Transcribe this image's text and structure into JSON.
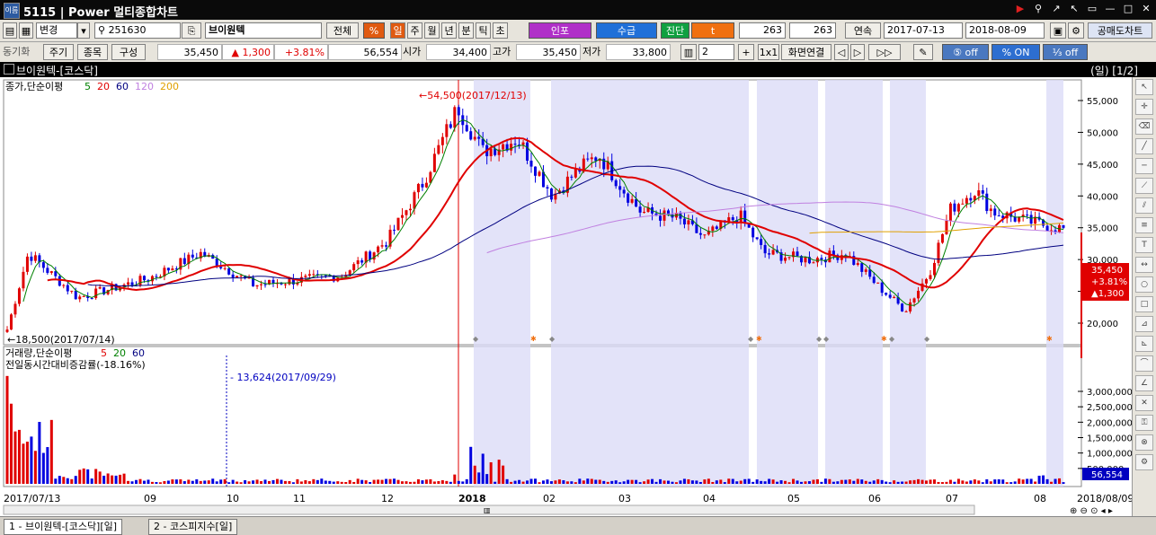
{
  "window": {
    "screen_no": "5115",
    "title": "Power 멀티종합차트"
  },
  "toolbar1": {
    "mode_select": "변경",
    "code": "251630",
    "stock_name": "브이원텍",
    "all_label": "전체",
    "percent_label": "%",
    "periods": [
      "일",
      "주",
      "월",
      "년",
      "분",
      "틱",
      "초"
    ],
    "active_period": "일",
    "btn_inpo": "인포",
    "btn_supply": "수급",
    "btn_diag": "진단",
    "btn_t": "t",
    "count1": "263",
    "count2": "263",
    "continuous_label": "연속",
    "date_from": "2017-07-13",
    "date_to": "2018-08-09",
    "short_sell_label": "공매도차트"
  },
  "toolbar2": {
    "sync_label": "동기화",
    "btn_cycle": "주기",
    "btn_item": "종목",
    "btn_compose": "구성",
    "price": "35,450",
    "change": "1,300",
    "change_pct": "+3.81%",
    "volume": "56,554",
    "open_label": "시가",
    "open": "34,400",
    "high_label": "고가",
    "high": "35,450",
    "low_label": "저가",
    "low": "33,800",
    "layout_count": "2",
    "ratio_label": "1x1",
    "screen_link_label": "화면연결",
    "toggle1": "off",
    "toggle2": "ON",
    "toggle3": "off"
  },
  "chart": {
    "header_title": "브이원텍-[코스닥]",
    "header_right": "(일) [1/2]",
    "price_legend": "종가,단순이평",
    "ma_labels": [
      "5",
      "20",
      "60",
      "120",
      "200"
    ],
    "high_annotation": "54,500(2017/12/13)",
    "low_annotation": "18,500(2017/07/14)",
    "volume_legend": "거래량,단순이평",
    "volume_ma_labels": [
      "5",
      "20",
      "60"
    ],
    "volume_legend2": "전일동시간대비증감률(-18.16%)",
    "vol_annotation": "13,624(2017/09/29)",
    "current_box": [
      "35,450",
      "+3.81%",
      "▲1,300"
    ],
    "current_volume": "56,554",
    "price_ticks": [
      "55,000",
      "50,000",
      "45,000",
      "40,000",
      "35,000",
      "30,000",
      "25,000",
      "20,000"
    ],
    "volume_ticks": [
      "3,000,000",
      "2,500,000",
      "2,000,000",
      "1,500,000",
      "1,000,000",
      "500,000"
    ],
    "date_labels": [
      "2017/07/13",
      "09",
      "10",
      "11",
      "12",
      "2018",
      "02",
      "03",
      "04",
      "05",
      "06",
      "07",
      "08",
      "2018/08/09"
    ]
  },
  "bottom_tabs": [
    "1 - 브이원텍-[코스닥][일]",
    "2 - 코스피지수[일]"
  ],
  "colors": {
    "up": "#e00000",
    "down": "#0000e0",
    "ma5": "#008000",
    "ma20": "#e00000",
    "ma60": "#000080",
    "ma120": "#c080e0",
    "ma200": "#e0a000",
    "shade": "#dcdcf8"
  }
}
